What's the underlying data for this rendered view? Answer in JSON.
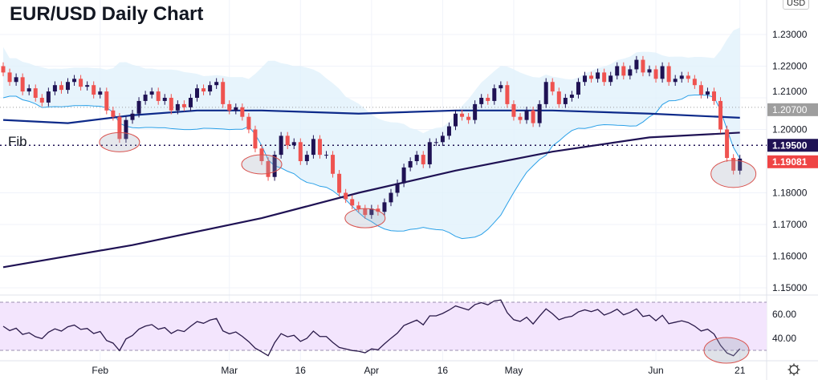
{
  "chart_data": {
    "type": "candlestick",
    "title": "EUR/USD Daily Chart",
    "currency": "USD",
    "ylim": [
      1.145,
      1.235
    ],
    "y_ticks": [
      "1.23000",
      "1.22000",
      "1.21000",
      "1.20000",
      "1.18000",
      "1.17000",
      "1.16000",
      "1.15000"
    ],
    "y_tick_values": [
      1.23,
      1.22,
      1.21,
      1.2,
      1.18,
      1.17,
      1.16,
      1.15
    ],
    "x_ticks": [
      {
        "label": "Feb",
        "index": 15
      },
      {
        "label": "Mar",
        "index": 35
      },
      {
        "label": "16",
        "index": 46
      },
      {
        "label": "Apr",
        "index": 57
      },
      {
        "label": "16",
        "index": 68
      },
      {
        "label": "May",
        "index": 79
      },
      {
        "label": "Jun",
        "index": 101
      },
      {
        "label": "21",
        "index": 114
      }
    ],
    "closes": [
      1.218,
      1.215,
      1.2165,
      1.212,
      1.213,
      1.21,
      1.2085,
      1.212,
      1.214,
      1.2125,
      1.215,
      1.216,
      1.2135,
      1.214,
      1.211,
      1.212,
      1.206,
      1.204,
      1.197,
      1.203,
      1.205,
      1.209,
      1.211,
      1.212,
      1.209,
      1.21,
      1.206,
      1.208,
      1.207,
      1.21,
      1.213,
      1.212,
      1.214,
      1.215,
      1.208,
      1.206,
      1.207,
      1.204,
      1.2,
      1.194,
      1.19,
      1.185,
      1.192,
      1.198,
      1.195,
      1.196,
      1.19,
      1.192,
      1.197,
      1.192,
      1.192,
      1.186,
      1.18,
      1.178,
      1.176,
      1.175,
      1.173,
      1.175,
      1.174,
      1.177,
      1.18,
      1.183,
      1.188,
      1.19,
      1.192,
      1.189,
      1.196,
      1.196,
      1.198,
      1.201,
      1.205,
      1.204,
      1.203,
      1.208,
      1.21,
      1.209,
      1.213,
      1.214,
      1.208,
      1.204,
      1.203,
      1.206,
      1.202,
      1.208,
      1.215,
      1.212,
      1.208,
      1.21,
      1.211,
      1.215,
      1.217,
      1.216,
      1.218,
      1.215,
      1.217,
      1.22,
      1.217,
      1.219,
      1.222,
      1.218,
      1.219,
      1.216,
      1.22,
      1.215,
      1.216,
      1.217,
      1.216,
      1.214,
      1.211,
      1.212,
      1.209,
      1.2,
      1.191,
      1.187,
      1.1908
    ],
    "first_open": 1.22,
    "ma50": [
      [
        0,
        1.203
      ],
      [
        10,
        1.202
      ],
      [
        20,
        1.2045
      ],
      [
        30,
        1.206
      ],
      [
        40,
        1.206
      ],
      [
        55,
        1.205
      ],
      [
        70,
        1.206
      ],
      [
        85,
        1.206
      ],
      [
        100,
        1.205
      ],
      [
        114,
        1.2037
      ]
    ],
    "ma200": [
      [
        0,
        1.1565
      ],
      [
        20,
        1.1635
      ],
      [
        40,
        1.172
      ],
      [
        55,
        1.18
      ],
      [
        70,
        1.187
      ],
      [
        85,
        1.193
      ],
      [
        100,
        1.1975
      ],
      [
        114,
        1.199
      ]
    ],
    "levels": [
      {
        "label": "1.20700",
        "value": 1.207,
        "color": "#9e9e9e"
      },
      {
        "label": "1.19500",
        "value": 1.195,
        "color": "#1f1254",
        "name": "Fib"
      },
      {
        "label": "1.19081",
        "value": 1.19081,
        "color": "#ef4444"
      }
    ],
    "highlights": [
      18,
      40,
      56,
      113
    ],
    "rsi": {
      "ticks": [
        "60.00",
        "40.00"
      ],
      "tick_values": [
        60,
        40
      ],
      "upper": 70,
      "lower": 30
    }
  },
  "colors": {
    "up": "#1f1254",
    "down": "#ef5350",
    "band": "#e1f1fb",
    "ma50": "#0d2a8a",
    "ma200": "#1f1254",
    "rsi_bg": "#f3e5fd"
  }
}
